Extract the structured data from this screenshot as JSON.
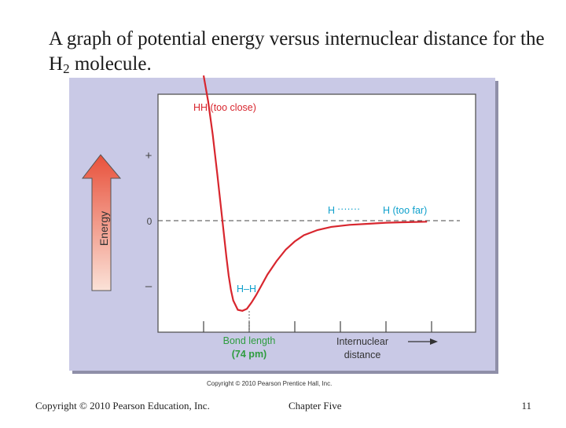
{
  "slide": {
    "title_prefix": "A graph of potential energy versus internuclear distance for the H",
    "title_subscript": "2",
    "title_suffix": " molecule."
  },
  "footer": {
    "left": "Copyright © 2010 Pearson Education, Inc.",
    "center": "Chapter Five",
    "right": "11"
  },
  "figure_credit": "Copyright © 2010 Pearson Prentice Hall, Inc.",
  "colors": {
    "panel": "#c9c9e6",
    "curve": "#d8262e",
    "annotation": "#0fa0cc",
    "arrow_top": "#e8513b",
    "arrow_bottom": "#fbe2d8"
  },
  "chart_data": {
    "type": "line",
    "title": "",
    "ylabel": "Energy",
    "xlabel": "Internuclear distance",
    "y_ticks": [
      "+",
      "0",
      "–"
    ],
    "xlim": [
      0,
      6
    ],
    "ylim": [
      -1.0,
      1.4
    ],
    "zero_line": true,
    "series": [
      {
        "x": [
          0.0,
          0.1,
          0.2,
          0.3,
          0.4,
          0.5,
          0.55,
          0.6,
          0.65,
          0.75,
          0.85,
          0.95,
          1.05,
          1.15,
          1.25,
          1.4,
          1.6,
          1.8,
          2.0,
          2.2,
          2.5,
          2.8,
          3.2,
          3.6,
          4.0,
          4.4,
          4.9
        ],
        "y": [
          1.4,
          1.15,
          0.83,
          0.45,
          0.05,
          -0.35,
          -0.53,
          -0.67,
          -0.77,
          -0.86,
          -0.87,
          -0.85,
          -0.79,
          -0.72,
          -0.64,
          -0.52,
          -0.39,
          -0.28,
          -0.2,
          -0.14,
          -0.09,
          -0.06,
          -0.04,
          -0.03,
          -0.02,
          -0.015,
          -0.01
        ]
      }
    ],
    "annotations": {
      "too_close": "HH (too close)",
      "too_far_left": "H",
      "too_far_dots": "·······",
      "too_far_right": "H (too far)",
      "bonded": "H–H",
      "bond_length_label": "Bond length",
      "bond_length_value": "(74 pm)"
    }
  }
}
